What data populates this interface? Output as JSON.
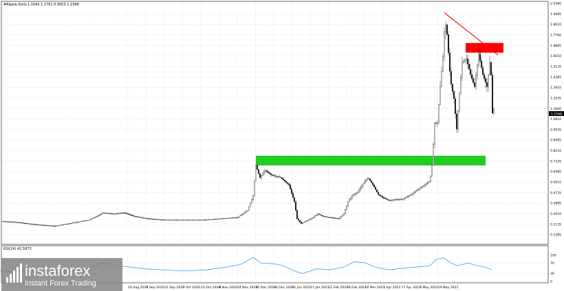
{
  "window": {
    "symbol_title": "#Ripple,Daily",
    "ohlc_readout": "1.1042  1.1761  0.9053  1.1568"
  },
  "indicator": {
    "label": "RSI(14) 42.5973",
    "levels": [
      "100",
      "70",
      "30",
      "0"
    ]
  },
  "price_marker": "1.1568",
  "brand": {
    "name": "instaforex",
    "tagline": "Instant Forex Trading"
  },
  "colors": {
    "support_zone": "#22cc22",
    "resistance_zone": "#ff0000",
    "trendline": "#ff0000",
    "rsi_line": "#1e90ff",
    "candles": "#000000"
  },
  "chart_data": {
    "type": "candlestick",
    "title": "#Ripple,Daily",
    "y_tick_labels": [
      "2.0360",
      "1.9485",
      "1.8610",
      "1.7760",
      "1.6885",
      "1.6010",
      "1.5135",
      "1.4285",
      "1.3410",
      "1.2535",
      "1.1660",
      "1.0810",
      "0.9935",
      "0.9085",
      "0.8210",
      "0.7335",
      "0.6485",
      "0.5610",
      "0.4735",
      "0.3885",
      "0.3010",
      "0.2135",
      "0.1285"
    ],
    "x_tick_labels": [
      "20 Aug 2020",
      "5 Sep 2020",
      "21 Sep 2020",
      "7 Oct 2020",
      "23 Oct 2020",
      "8 Nov 2020",
      "24 Nov 2020",
      "10 Dec 2020",
      "26 Dec 2020",
      "11 Jan 2021",
      "27 Jan 2021",
      "12 Feb 2021",
      "28 Feb 2021",
      "16 Mar 2021",
      "1 Apr 2021",
      "17 Apr 2021",
      "3 May 2021",
      "19 May 2021"
    ],
    "ylim": [
      0.1285,
      2.036
    ],
    "price_path": [
      [
        0,
        0.24
      ],
      [
        25,
        0.23
      ],
      [
        55,
        0.21
      ],
      [
        80,
        0.2
      ],
      [
        100,
        0.22
      ],
      [
        130,
        0.25
      ],
      [
        150,
        0.31
      ],
      [
        165,
        0.3
      ],
      [
        180,
        0.31
      ],
      [
        195,
        0.28
      ],
      [
        215,
        0.26
      ],
      [
        240,
        0.25
      ],
      [
        270,
        0.25
      ],
      [
        295,
        0.25
      ],
      [
        320,
        0.26
      ],
      [
        345,
        0.27
      ],
      [
        360,
        0.33
      ],
      [
        368,
        0.45
      ],
      [
        372,
        0.7
      ],
      [
        378,
        0.6
      ],
      [
        385,
        0.66
      ],
      [
        395,
        0.62
      ],
      [
        408,
        0.6
      ],
      [
        420,
        0.54
      ],
      [
        428,
        0.4
      ],
      [
        432,
        0.26
      ],
      [
        438,
        0.22
      ],
      [
        445,
        0.24
      ],
      [
        455,
        0.27
      ],
      [
        462,
        0.3
      ],
      [
        470,
        0.28
      ],
      [
        480,
        0.27
      ],
      [
        492,
        0.26
      ],
      [
        500,
        0.3
      ],
      [
        506,
        0.4
      ],
      [
        512,
        0.45
      ],
      [
        520,
        0.48
      ],
      [
        528,
        0.55
      ],
      [
        535,
        0.6
      ],
      [
        542,
        0.54
      ],
      [
        550,
        0.46
      ],
      [
        558,
        0.43
      ],
      [
        566,
        0.41
      ],
      [
        575,
        0.42
      ],
      [
        585,
        0.42
      ],
      [
        595,
        0.45
      ],
      [
        605,
        0.49
      ],
      [
        615,
        0.53
      ],
      [
        625,
        0.57
      ],
      [
        628,
        0.7
      ],
      [
        632,
        1.05
      ],
      [
        636,
        1.05
      ],
      [
        640,
        1.35
      ],
      [
        644,
        1.6
      ],
      [
        647,
        1.9
      ],
      [
        650,
        1.78
      ],
      [
        655,
        1.4
      ],
      [
        660,
        1.25
      ],
      [
        664,
        1.0
      ],
      [
        668,
        1.3
      ],
      [
        672,
        1.55
      ],
      [
        678,
        1.58
      ],
      [
        684,
        1.45
      ],
      [
        690,
        1.35
      ],
      [
        696,
        1.62
      ],
      [
        702,
        1.45
      ],
      [
        708,
        1.35
      ],
      [
        713,
        1.6
      ],
      [
        716,
        1.13
      ],
      [
        718,
        1.16
      ]
    ],
    "rsi_path": [
      [
        0,
        40
      ],
      [
        30,
        38
      ],
      [
        60,
        35
      ],
      [
        90,
        33
      ],
      [
        120,
        45
      ],
      [
        150,
        70
      ],
      [
        170,
        60
      ],
      [
        190,
        55
      ],
      [
        210,
        48
      ],
      [
        240,
        44
      ],
      [
        270,
        40
      ],
      [
        300,
        44
      ],
      [
        330,
        55
      ],
      [
        350,
        65
      ],
      [
        368,
        92
      ],
      [
        380,
        70
      ],
      [
        395,
        68
      ],
      [
        410,
        62
      ],
      [
        428,
        40
      ],
      [
        440,
        30
      ],
      [
        460,
        48
      ],
      [
        480,
        45
      ],
      [
        500,
        55
      ],
      [
        515,
        75
      ],
      [
        530,
        72
      ],
      [
        545,
        55
      ],
      [
        565,
        44
      ],
      [
        585,
        50
      ],
      [
        605,
        55
      ],
      [
        625,
        60
      ],
      [
        635,
        85
      ],
      [
        645,
        90
      ],
      [
        655,
        72
      ],
      [
        665,
        60
      ],
      [
        680,
        70
      ],
      [
        695,
        60
      ],
      [
        705,
        55
      ],
      [
        715,
        45
      ]
    ],
    "rsi_ylim": [
      0,
      100
    ],
    "annotations": [
      {
        "type": "support-zone",
        "label": "green rectangle",
        "from_x": 372,
        "to_x": 706,
        "y_low": 0.7,
        "y_high": 0.78
      },
      {
        "type": "resistance-zone",
        "label": "red rectangle",
        "from_x": 677,
        "to_x": 732,
        "y_low": 1.63,
        "y_high": 1.71
      },
      {
        "type": "trendline",
        "label": "red trendline",
        "from": [
          646,
          1.96
        ],
        "to": [
          724,
          1.61
        ]
      }
    ]
  }
}
